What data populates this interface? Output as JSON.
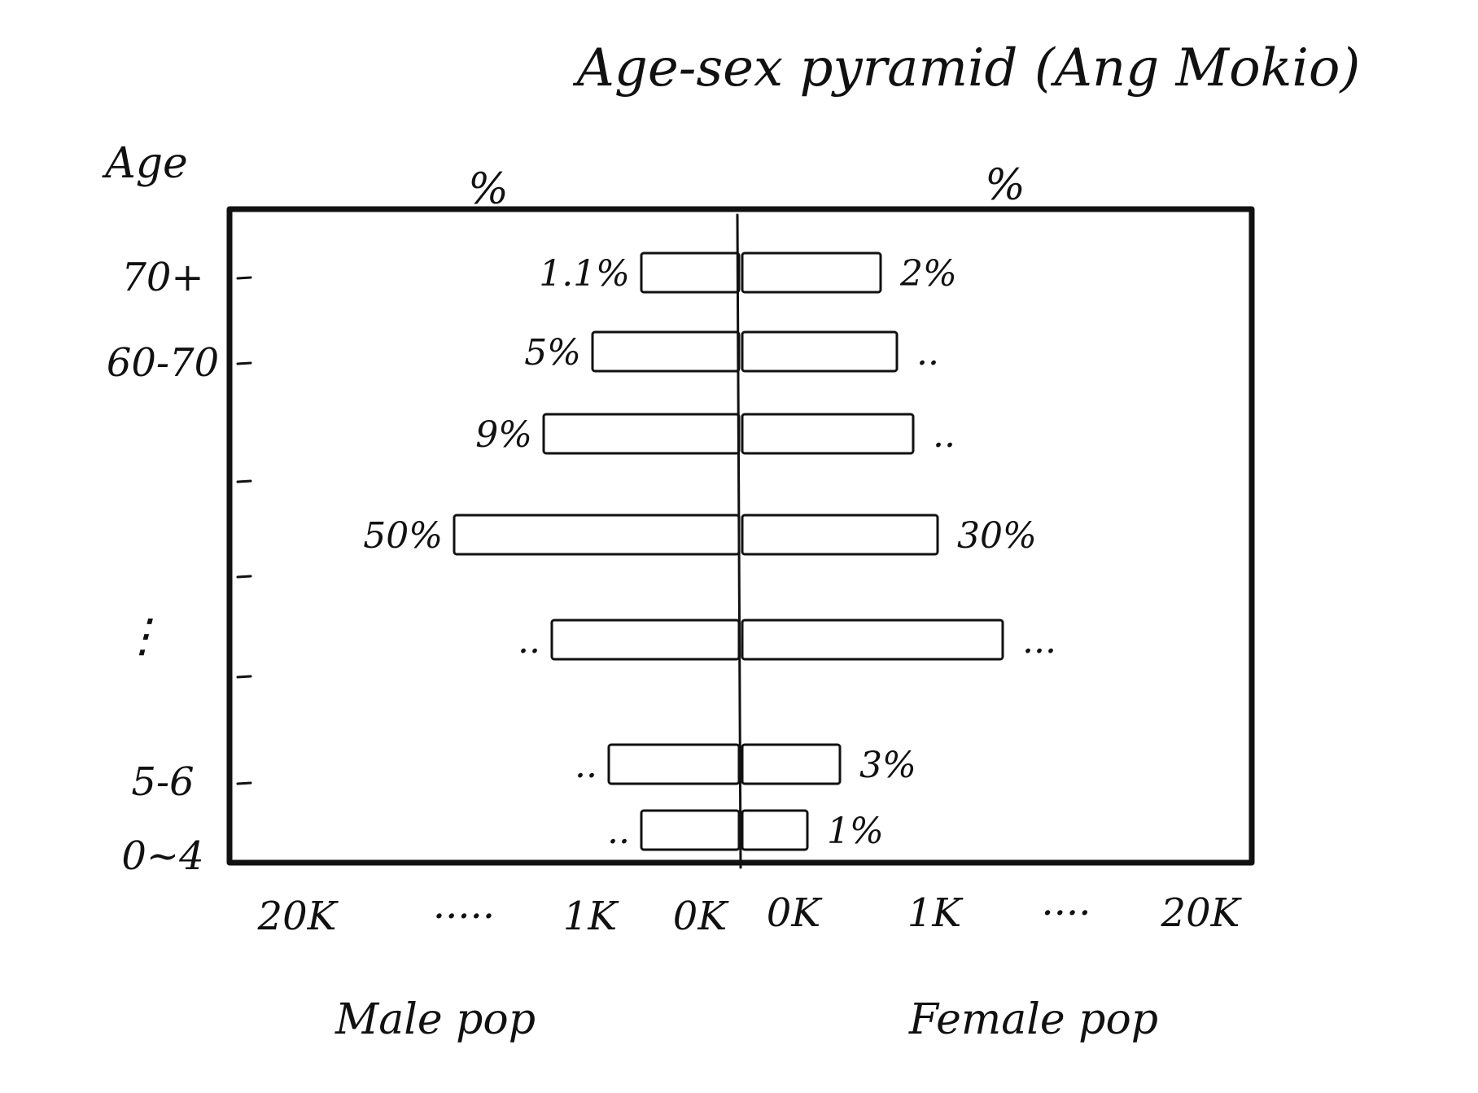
{
  "chart_data": {
    "type": "bar",
    "title": "Age-sex pyramid (Ang Mokio)",
    "y_axis_label": "Age",
    "top_labels": {
      "left": "%",
      "right": "%"
    },
    "age_tick_labels": [
      "70+",
      "60-70",
      "",
      "",
      "⋮",
      "",
      "5-6",
      "0~4"
    ],
    "x_tick_labels": {
      "left": [
        "20K",
        "·····",
        "1K",
        "0K"
      ],
      "right": [
        "0K",
        "1K",
        "····",
        "20K"
      ]
    },
    "xlabel_left": "Male pop",
    "xlabel_right": "Female pop",
    "series": [
      {
        "name": "Male pop",
        "values": [
          0.6,
          0.9,
          1.2,
          1.75,
          1.15,
          0.8,
          0.6
        ],
        "labels": [
          "1.1%",
          "5%",
          "9%",
          "50%",
          "..",
          "..",
          ".."
        ]
      },
      {
        "name": "Female pop",
        "values": [
          0.85,
          0.95,
          1.05,
          1.2,
          1.6,
          0.6,
          0.4
        ],
        "labels": [
          "2%",
          "..",
          "..",
          "30%",
          "...",
          "3%",
          "1%"
        ]
      }
    ],
    "x_scale": "hand-drawn relative bar lengths, center 0K, outward 1K ... 20K",
    "grid": false,
    "legend": "none"
  },
  "colors": {
    "ink": "#111111",
    "background": "#ffffff"
  }
}
